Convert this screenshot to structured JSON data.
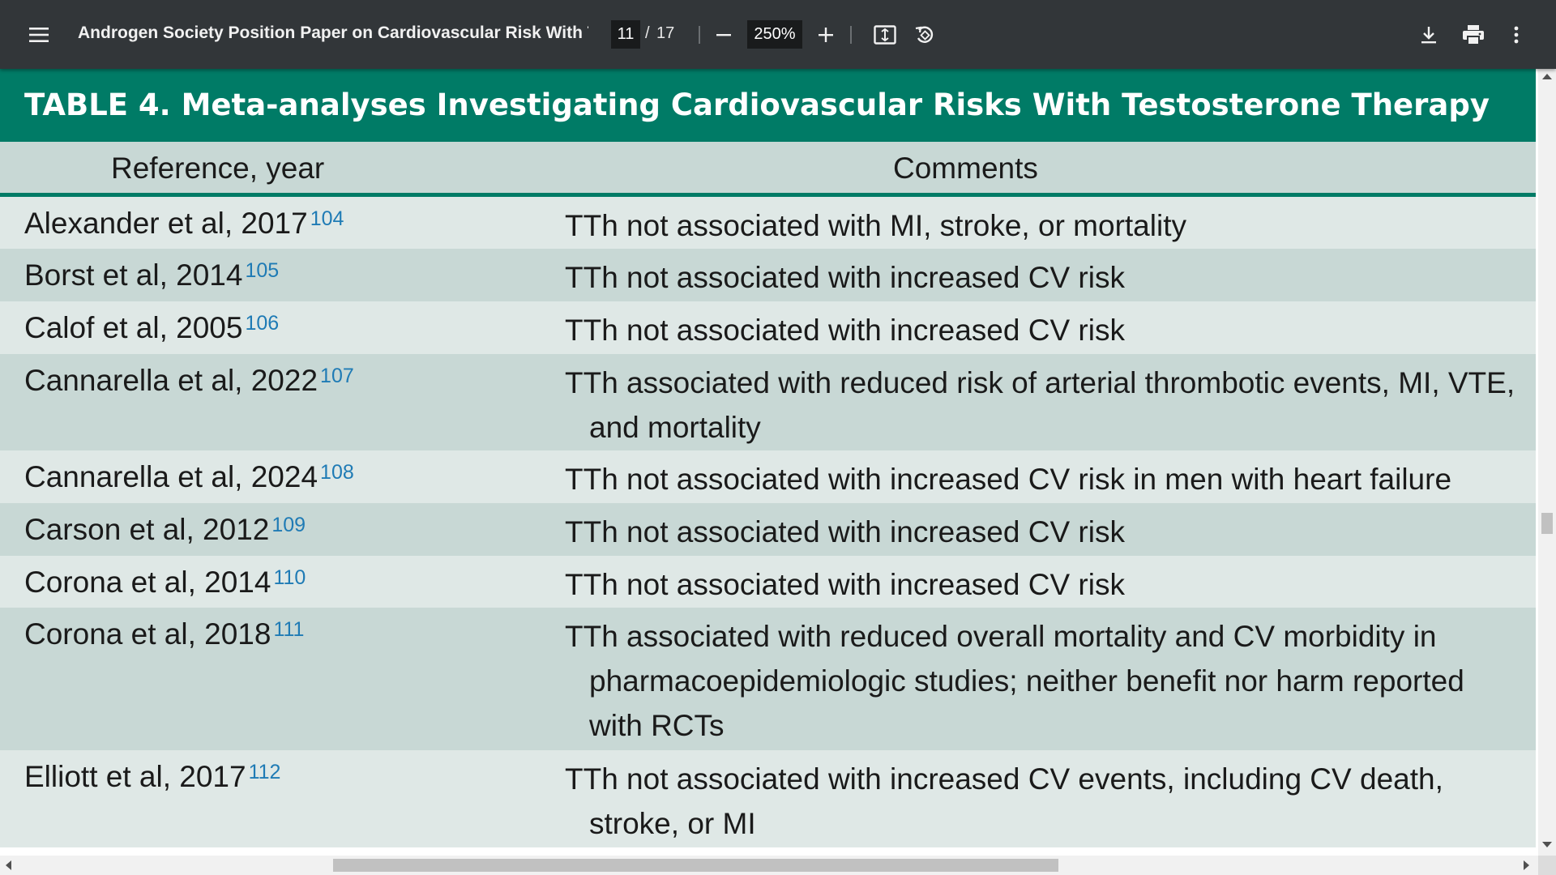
{
  "toolbar": {
    "menu_icon": "hamburger-menu-icon",
    "title": "Androgen Society Position Paper on Cardiovascular Risk With Te...",
    "page_current": "11",
    "page_separator": "/",
    "page_total": "17",
    "zoom_out_icon": "minus-icon",
    "zoom_value": "250%",
    "zoom_in_icon": "plus-icon",
    "fit_icon": "fit-to-page-icon",
    "rotate_icon": "rotate-counterclockwise-icon",
    "download_icon": "download-icon",
    "print_icon": "print-icon",
    "more_icon": "more-vertical-icon"
  },
  "document": {
    "table_title": "TABLE 4.  Meta-analyses Investigating Cardiovascular Risks With Testosterone Therapy",
    "columns": [
      "Reference, year",
      "Comments"
    ],
    "rows": [
      {
        "reference": "Alexander et al, 2017",
        "cite": "104",
        "comment": "TTh not associated with MI, stroke, or mortality"
      },
      {
        "reference": "Borst et al, 2014",
        "cite": "105",
        "comment": "TTh not associated with increased CV risk"
      },
      {
        "reference": "Calof et al, 2005",
        "cite": "106",
        "comment": "TTh not associated with increased CV risk"
      },
      {
        "reference": "Cannarella et al, 2022",
        "cite": "107",
        "comment": "TTh associated with reduced risk of arterial thrombotic events, MI, VTE, and mortality"
      },
      {
        "reference": "Cannarella et al, 2024",
        "cite": "108",
        "comment": "TTh not associated with increased CV risk in men with heart failure"
      },
      {
        "reference": "Carson et al, 2012",
        "cite": "109",
        "comment": "TTh not associated with increased CV risk"
      },
      {
        "reference": "Corona et al, 2014",
        "cite": "110",
        "comment": "TTh not associated with increased CV risk"
      },
      {
        "reference": "Corona et al, 2018",
        "cite": "111",
        "comment": "TTh associated with reduced overall mortality and CV morbidity in pharmacoepidemiologic studies; neither benefit nor harm reported with RCTs"
      },
      {
        "reference": "Elliott et al, 2017",
        "cite": "112",
        "comment": "TTh not associated with increased CV events, including CV death, stroke, or MI"
      }
    ]
  },
  "colors": {
    "toolbar_bg": "#323639",
    "table_title_bg": "#007b66",
    "row_light": "#dfe8e6",
    "row_dark": "#c8d8d5",
    "citation": "#1f7bb5"
  }
}
